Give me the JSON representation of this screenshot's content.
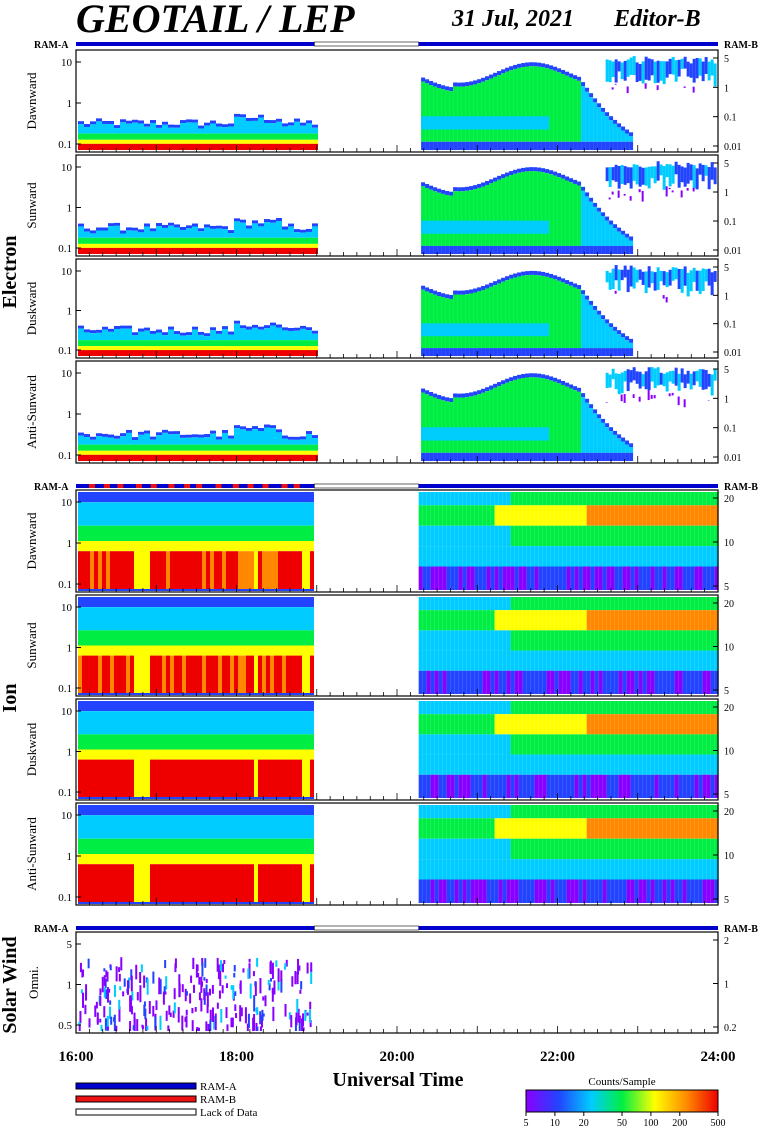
{
  "header": {
    "title": "GEOTAIL / LEP",
    "date": "31 Jul, 2021",
    "editor": "Editor-B"
  },
  "colors": {
    "ram_a": "#0000cc",
    "ram_b": "#ee1111",
    "lack_of_data": "#ffffff",
    "spectrum": [
      "#8800ff",
      "#2244ff",
      "#00ccff",
      "#00ee44",
      "#ffff00",
      "#ff8800",
      "#ee0000"
    ]
  },
  "chart_data": {
    "type": "heatmap",
    "xlabel": "Universal Time",
    "x_ticks": [
      "16:00",
      "18:00",
      "20:00",
      "22:00",
      "24:00"
    ],
    "x_range_hours": [
      16,
      24
    ],
    "data_gap_hours": [
      18.97,
      20.27
    ],
    "ram_bar_labels": {
      "left": "RAM-A",
      "right": "RAM-B"
    },
    "groups": [
      {
        "name": "Electron",
        "panels": [
          {
            "label": "Dawnward",
            "left_ticks": [
              "10",
              "1",
              "0.1"
            ],
            "right_ticks": [
              "5",
              "1",
              "0.1",
              "0.01"
            ]
          },
          {
            "label": "Sunward",
            "left_ticks": [
              "10",
              "1",
              "0.1"
            ],
            "right_ticks": [
              "5",
              "1",
              "0.1",
              "0.01"
            ]
          },
          {
            "label": "Duskward",
            "left_ticks": [
              "10",
              "1",
              "0.1"
            ],
            "right_ticks": [
              "5",
              "1",
              "0.1",
              "0.01"
            ]
          },
          {
            "label": "Anti-Sunward",
            "left_ticks": [
              "10",
              "1",
              "0.1"
            ],
            "right_ticks": [
              "5",
              "1",
              "0.1",
              "0.01"
            ]
          }
        ]
      },
      {
        "name": "Ion",
        "panels": [
          {
            "label": "Dawnward",
            "left_ticks": [
              "10",
              "1",
              "0.1"
            ],
            "right_ticks": [
              "20",
              "10",
              "5"
            ]
          },
          {
            "label": "Sunward",
            "left_ticks": [
              "10",
              "1",
              "0.1"
            ],
            "right_ticks": [
              "20",
              "10",
              "5"
            ]
          },
          {
            "label": "Duskward",
            "left_ticks": [
              "10",
              "1",
              "0.1"
            ],
            "right_ticks": [
              "20",
              "10",
              "5"
            ]
          },
          {
            "label": "Anti-Sunward",
            "left_ticks": [
              "10",
              "1",
              "0.1"
            ],
            "right_ticks": [
              "20",
              "10",
              "5"
            ]
          }
        ]
      },
      {
        "name": "Solar Wind",
        "panels": [
          {
            "label": "Omni.",
            "left_ticks": [
              "5",
              "1",
              "0.5"
            ],
            "right_ticks": [
              "2",
              "1",
              "0.2"
            ]
          }
        ]
      }
    ],
    "legend": [
      {
        "label": "RAM-A",
        "color": "#0000cc"
      },
      {
        "label": "RAM-B",
        "color": "#ee1111"
      },
      {
        "label": "Lack of Data",
        "color": "#ffffff"
      }
    ],
    "colorbar": {
      "title": "Counts/Sample",
      "ticks": [
        "5",
        "10",
        "20",
        "50",
        "100",
        "200",
        "500"
      ]
    }
  }
}
